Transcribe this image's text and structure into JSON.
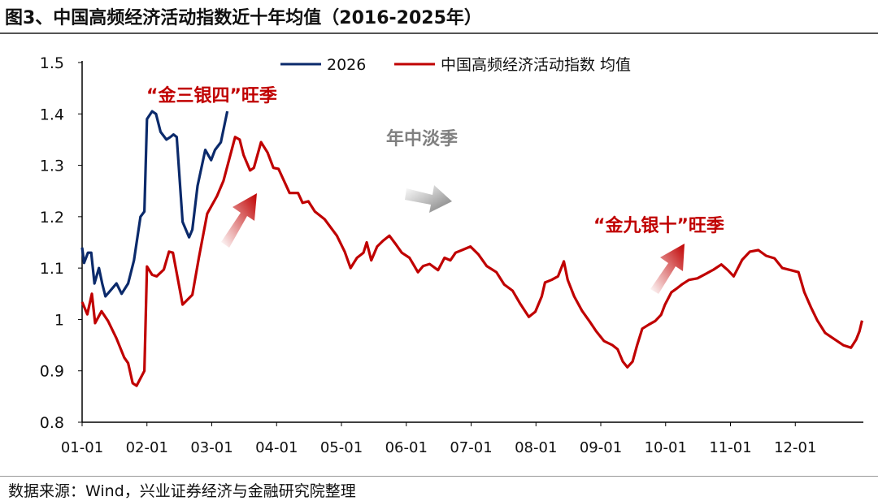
{
  "title": "图3、中国高频经济活动指数近十年均值（2016-2025年）",
  "source": "数据来源：Wind，兴业证券经济与金融研究院整理",
  "chart_data": {
    "type": "line",
    "title": "图3、中国高频经济活动指数近十年均值（2016-2025年）",
    "xlabel": "",
    "ylabel": "",
    "ylim": [
      0.8,
      1.5
    ],
    "xlim": [
      0,
      12.05
    ],
    "yticks": [
      "0.8",
      "0.9",
      "1",
      "1.1",
      "1.2",
      "1.3",
      "1.4",
      "1.5"
    ],
    "xticks": [
      "01-01",
      "02-01",
      "03-01",
      "04-01",
      "05-01",
      "06-01",
      "07-01",
      "08-01",
      "09-01",
      "10-01",
      "11-01",
      "12-01"
    ],
    "legend_position": "top",
    "annotations": [
      "“金三银四”旺季",
      "年中淡季",
      "“金九银十”旺季"
    ],
    "series": [
      {
        "name": "2026",
        "color": "#0b2a6b",
        "x": [
          0,
          0.03,
          0.09,
          0.14,
          0.19,
          0.26,
          0.31,
          0.36,
          0.53,
          0.61,
          0.71,
          0.8,
          0.9,
          0.96,
          1.0,
          1.08,
          1.14,
          1.21,
          1.3,
          1.36,
          1.41,
          1.46,
          1.55,
          1.65,
          1.7,
          1.78,
          1.9,
          1.99,
          2.05,
          2.14,
          2.24
        ],
        "y": [
          1.14,
          1.11,
          1.13,
          1.13,
          1.07,
          1.1,
          1.07,
          1.045,
          1.07,
          1.05,
          1.07,
          1.115,
          1.2,
          1.21,
          1.39,
          1.405,
          1.4,
          1.365,
          1.35,
          1.355,
          1.36,
          1.355,
          1.19,
          1.16,
          1.175,
          1.26,
          1.33,
          1.31,
          1.33,
          1.345,
          1.405
        ]
      },
      {
        "name": "中国高频经济活动指数 均值",
        "color": "#c00000",
        "x": [
          0,
          0.08,
          0.15,
          0.2,
          0.3,
          0.4,
          0.53,
          0.65,
          0.71,
          0.78,
          0.84,
          0.96,
          1.0,
          1.08,
          1.15,
          1.26,
          1.34,
          1.4,
          1.55,
          1.7,
          1.8,
          1.93,
          2.08,
          2.18,
          2.36,
          2.43,
          2.49,
          2.59,
          2.65,
          2.76,
          2.86,
          2.95,
          3.03,
          3.2,
          3.33,
          3.4,
          3.49,
          3.59,
          3.74,
          3.93,
          4.05,
          4.14,
          4.24,
          4.34,
          4.39,
          4.46,
          4.55,
          4.64,
          4.74,
          4.84,
          4.93,
          5.05,
          5.18,
          5.26,
          5.36,
          5.49,
          5.59,
          5.68,
          5.76,
          5.86,
          5.99,
          6.11,
          6.24,
          6.39,
          6.51,
          6.64,
          6.76,
          6.89,
          6.99,
          7.09,
          7.14,
          7.24,
          7.34,
          7.43,
          7.49,
          7.59,
          7.71,
          7.84,
          7.93,
          8.05,
          8.18,
          8.26,
          8.34,
          8.41,
          8.49,
          8.56,
          8.64,
          8.74,
          8.84,
          8.93,
          8.99,
          9.09,
          9.18,
          9.26,
          9.36,
          9.49,
          9.61,
          9.74,
          9.86,
          9.96,
          10.05,
          10.18,
          10.3,
          10.43,
          10.55,
          10.68,
          10.8,
          10.93,
          11.05,
          11.14,
          11.24,
          11.34,
          11.46,
          11.61,
          11.74,
          11.86,
          11.94,
          11.99,
          12.03
        ],
        "y": [
          1.034,
          1.01,
          1.05,
          0.993,
          1.016,
          0.997,
          0.963,
          0.926,
          0.915,
          0.876,
          0.871,
          0.9,
          1.103,
          1.087,
          1.084,
          1.097,
          1.132,
          1.13,
          1.029,
          1.048,
          1.12,
          1.206,
          1.24,
          1.27,
          1.355,
          1.35,
          1.32,
          1.29,
          1.295,
          1.345,
          1.325,
          1.295,
          1.293,
          1.246,
          1.246,
          1.227,
          1.23,
          1.21,
          1.195,
          1.163,
          1.132,
          1.1,
          1.12,
          1.13,
          1.15,
          1.115,
          1.142,
          1.153,
          1.163,
          1.146,
          1.13,
          1.12,
          1.092,
          1.104,
          1.108,
          1.096,
          1.12,
          1.115,
          1.13,
          1.135,
          1.142,
          1.127,
          1.104,
          1.092,
          1.068,
          1.056,
          1.03,
          1.005,
          1.015,
          1.045,
          1.072,
          1.077,
          1.084,
          1.113,
          1.077,
          1.045,
          1.017,
          0.994,
          0.977,
          0.958,
          0.95,
          0.942,
          0.918,
          0.907,
          0.918,
          0.95,
          0.982,
          0.99,
          0.997,
          1.009,
          1.029,
          1.053,
          1.061,
          1.069,
          1.077,
          1.08,
          1.088,
          1.097,
          1.107,
          1.096,
          1.084,
          1.116,
          1.132,
          1.135,
          1.124,
          1.119,
          1.1,
          1.096,
          1.092,
          1.053,
          1.024,
          0.998,
          0.974,
          0.961,
          0.95,
          0.945,
          0.961,
          0.977,
          0.998
        ]
      }
    ]
  }
}
